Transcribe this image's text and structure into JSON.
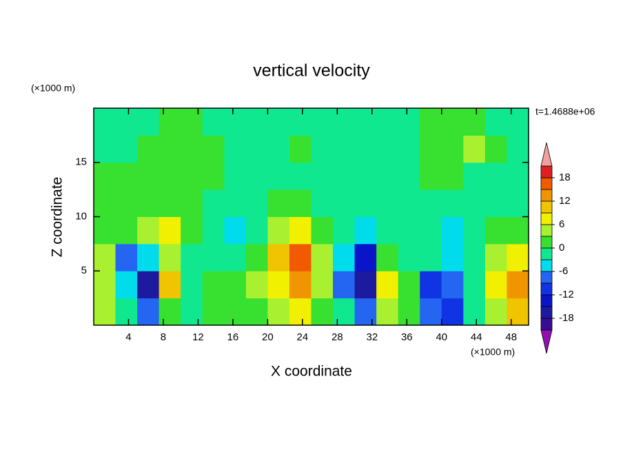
{
  "chart_data": {
    "type": "contour",
    "title": "vertical velocity",
    "xlabel": "X coordinate",
    "ylabel": "Z coordinate",
    "x_unit": "(×1000 m)",
    "y_unit": "(×1000 m)",
    "time_label": "t=1.4688e+06",
    "xlim": [
      0,
      50
    ],
    "ylim": [
      0,
      20
    ],
    "xticks": [
      4,
      8,
      12,
      16,
      20,
      24,
      28,
      32,
      36,
      40,
      44,
      48
    ],
    "yticks": [
      5,
      10,
      15
    ],
    "grid": false,
    "x": [
      1.25,
      3.75,
      6.25,
      8.75,
      11.25,
      13.75,
      16.25,
      18.75,
      21.25,
      23.75,
      26.25,
      28.75,
      31.25,
      33.75,
      36.25,
      38.75,
      41.25,
      43.75,
      46.25,
      48.75
    ],
    "y": [
      1.25,
      3.75,
      6.25,
      8.75,
      11.25,
      13.75,
      16.25,
      18.75
    ],
    "z": [
      [
        4,
        -2,
        -8,
        1,
        -2,
        1,
        1,
        2,
        5,
        7,
        1,
        -2,
        -8,
        5,
        1,
        -9,
        -10,
        -2,
        3,
        10
      ],
      [
        4,
        -4,
        -16,
        10,
        -2,
        2,
        0,
        3,
        8,
        14,
        3,
        -8,
        -16,
        6,
        2,
        -11,
        -8,
        -3,
        6,
        13
      ],
      [
        3,
        -8,
        -6,
        4,
        -3,
        -1,
        -2,
        2,
        9,
        15,
        4,
        -6,
        -14,
        1,
        -1,
        -3,
        -6,
        -2,
        4,
        6
      ],
      [
        2,
        1,
        3,
        6,
        1,
        -3,
        -4,
        -2,
        4,
        7,
        2,
        -3,
        -6,
        -3,
        -2,
        -3,
        -4,
        -3,
        1,
        2
      ],
      [
        2,
        1,
        2,
        1,
        2,
        -1,
        -2,
        -2,
        0,
        1,
        -1,
        -2,
        -2,
        -2,
        -2,
        -2,
        -2,
        -1,
        -1,
        -1
      ],
      [
        1,
        0,
        1,
        0,
        2,
        1,
        -1,
        -2,
        -2,
        -2,
        -1,
        -2,
        -2,
        -2,
        -2,
        0,
        0,
        -1,
        -1,
        -2
      ],
      [
        -1,
        -2,
        0,
        1,
        2,
        1,
        -1,
        -2,
        -2,
        0,
        -2,
        -2,
        -2,
        -2,
        -2,
        1,
        2,
        4,
        2,
        -1
      ],
      [
        -2,
        -2,
        -1,
        0,
        1,
        -1,
        -2,
        -2,
        -2,
        -2,
        -2,
        -1,
        -2,
        -2,
        -2,
        0,
        1,
        0,
        -1,
        -2
      ]
    ],
    "levels": [
      -21,
      -18,
      -15,
      -12,
      -9,
      -6,
      -3,
      0,
      3,
      6,
      9,
      12,
      15,
      18,
      21
    ],
    "colors": [
      "#3a0c96",
      "#1c1a9e",
      "#0a14c8",
      "#1034e4",
      "#2466f2",
      "#00dcec",
      "#10e890",
      "#38e030",
      "#a8f030",
      "#f0f000",
      "#f0c400",
      "#f09400",
      "#f05a00",
      "#e02020"
    ],
    "extend_colors": [
      "#9010b0",
      "#f0a0a0"
    ],
    "cbar_ticks": [
      -18,
      -12,
      -6,
      0,
      6,
      12,
      18
    ]
  }
}
